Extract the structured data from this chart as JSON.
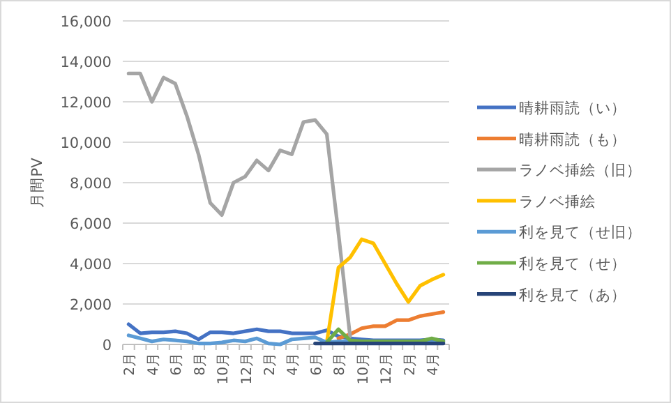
{
  "chart_data": {
    "type": "line",
    "ylabel": "月間PV",
    "categories": [
      "2月",
      null,
      "4月",
      null,
      "6月",
      null,
      "8月",
      null,
      "10月",
      null,
      "12月",
      null,
      "2月",
      null,
      "4月",
      null,
      "6月",
      null,
      "8月",
      null,
      "10月",
      null,
      "12月",
      null,
      "2月",
      null,
      "4月",
      null
    ],
    "ylim": [
      0,
      16000
    ],
    "yticks": [
      {
        "value": 0,
        "label": "0"
      },
      {
        "value": 2000,
        "label": "2,000"
      },
      {
        "value": 4000,
        "label": "4,000"
      },
      {
        "value": 6000,
        "label": "6,000"
      },
      {
        "value": 8000,
        "label": "8,000"
      },
      {
        "value": 10000,
        "label": "10,000"
      },
      {
        "value": 12000,
        "label": "12,000"
      },
      {
        "value": 14000,
        "label": "14,000"
      },
      {
        "value": 16000,
        "label": "16,000"
      }
    ],
    "grid": "y",
    "legend": "right",
    "series": [
      {
        "name": "晴耕雨読（い）",
        "color": "#4472c4",
        "values": [
          1000,
          550,
          600,
          600,
          650,
          550,
          250,
          600,
          600,
          550,
          650,
          750,
          650,
          650,
          550,
          550,
          550,
          700,
          400,
          300,
          250,
          200,
          200,
          200,
          200,
          200,
          250,
          200
        ]
      },
      {
        "name": "晴耕雨読（も）",
        "color": "#ed7d31",
        "values": [
          null,
          null,
          null,
          null,
          null,
          null,
          null,
          null,
          null,
          null,
          null,
          null,
          null,
          null,
          null,
          null,
          null,
          null,
          300,
          500,
          800,
          900,
          900,
          1200,
          1200,
          1400,
          1500,
          1600
        ]
      },
      {
        "name": "ラノベ挿絵（旧）",
        "color": "#a5a5a5",
        "values": [
          13400,
          13400,
          12000,
          13200,
          12900,
          11300,
          9400,
          7000,
          6400,
          8000,
          8300,
          9100,
          8600,
          9600,
          9400,
          11000,
          11100,
          10400,
          5500,
          400,
          null,
          null,
          null,
          null,
          null,
          null,
          null,
          null
        ]
      },
      {
        "name": "ラノベ挿絵",
        "color": "#ffc000",
        "values": [
          null,
          null,
          null,
          null,
          null,
          null,
          null,
          null,
          null,
          null,
          null,
          null,
          null,
          null,
          null,
          null,
          null,
          100,
          3800,
          4300,
          5200,
          5000,
          4000,
          3000,
          2100,
          2900,
          3200,
          3450
        ]
      },
      {
        "name": "利を見て（せ旧）",
        "color": "#5b9bd5",
        "values": [
          450,
          300,
          150,
          250,
          200,
          150,
          50,
          50,
          100,
          200,
          150,
          300,
          50,
          0,
          250,
          300,
          350,
          100,
          150,
          150,
          150,
          100,
          100,
          100,
          100,
          100,
          100,
          100
        ]
      },
      {
        "name": "利を見て（せ）",
        "color": "#70ad47",
        "values": [
          null,
          null,
          null,
          null,
          null,
          null,
          null,
          null,
          null,
          null,
          null,
          null,
          null,
          null,
          null,
          null,
          null,
          100,
          750,
          200,
          150,
          150,
          150,
          150,
          150,
          150,
          300,
          150
        ]
      },
      {
        "name": "利を見て（あ）",
        "color": "#264478",
        "values": [
          null,
          null,
          null,
          null,
          null,
          null,
          null,
          null,
          null,
          null,
          null,
          null,
          null,
          null,
          null,
          null,
          50,
          50,
          50,
          50,
          50,
          50,
          50,
          50,
          50,
          50,
          50,
          50
        ]
      }
    ]
  }
}
